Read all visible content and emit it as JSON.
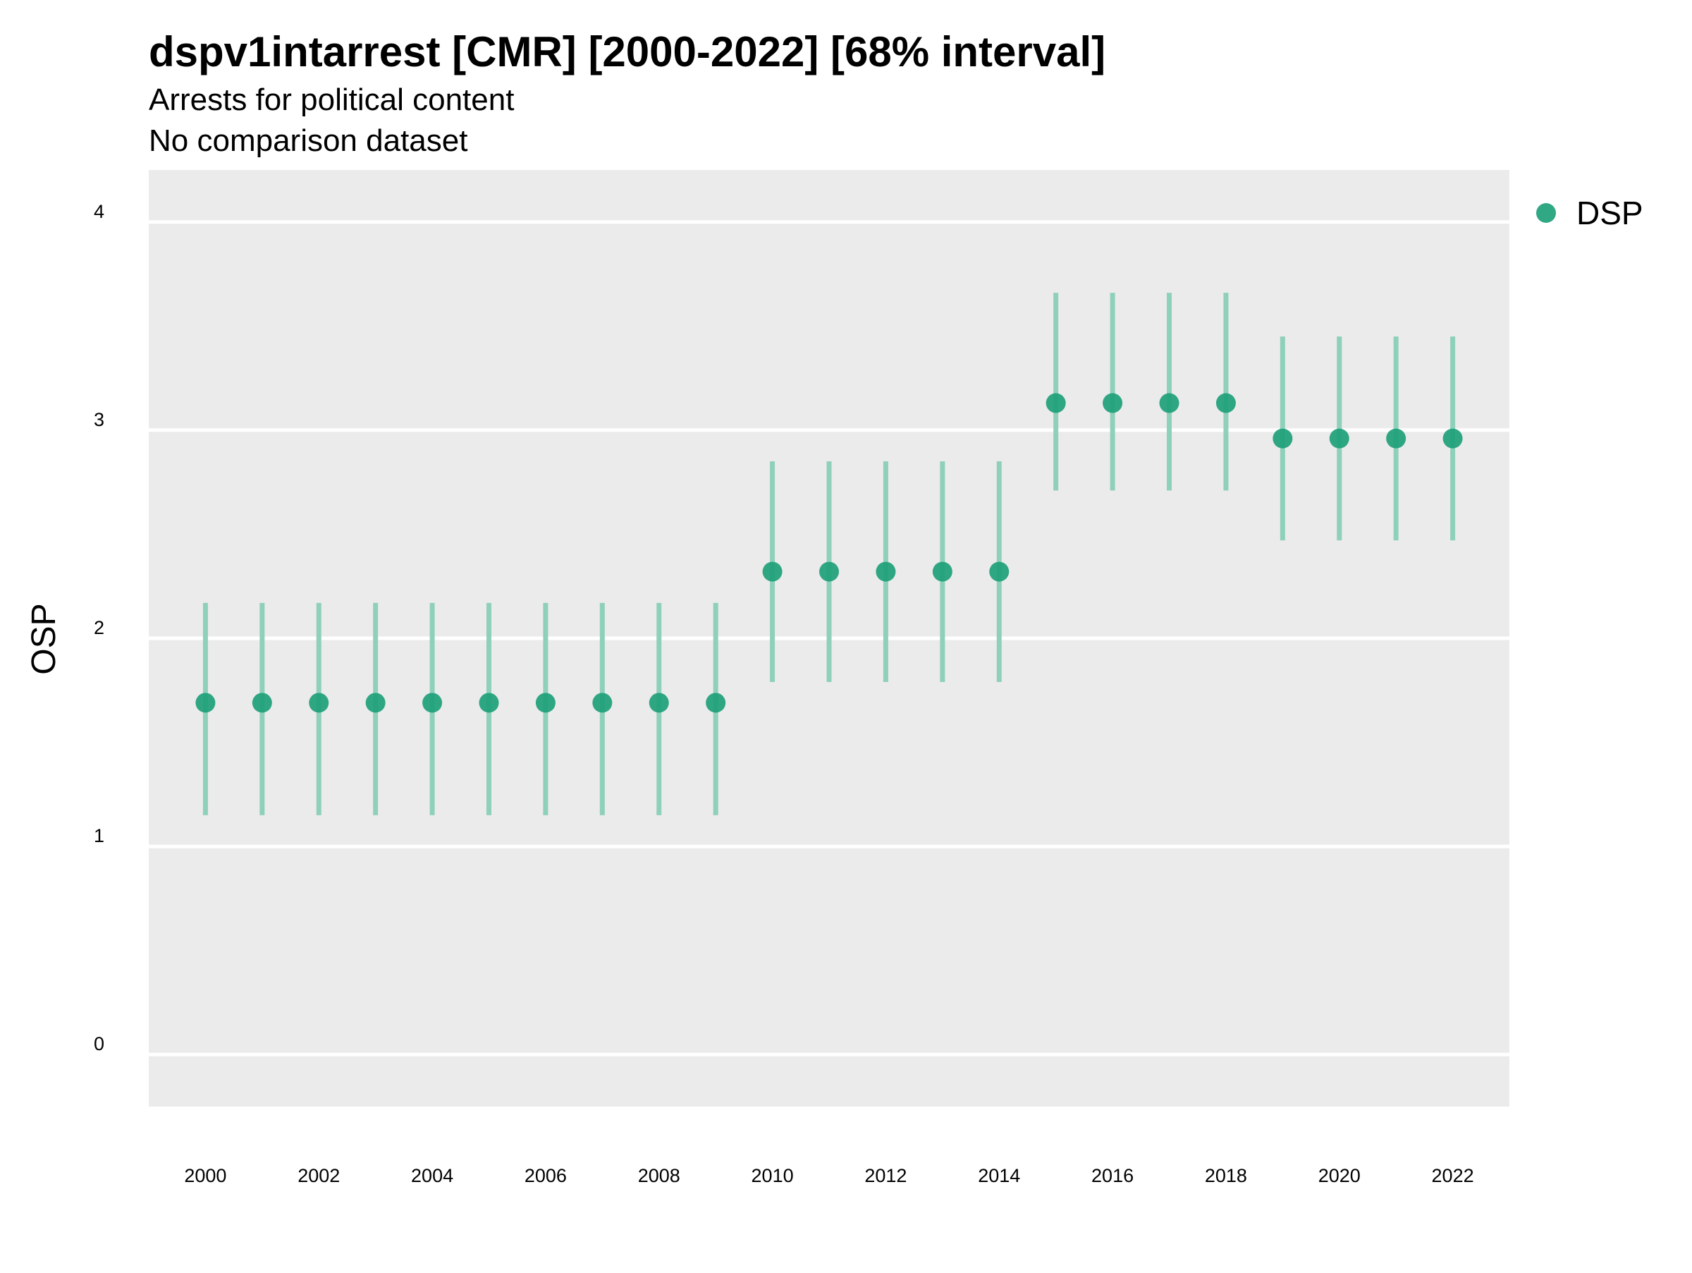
{
  "chart_data": {
    "type": "scatter",
    "title": "dspv1intarrest [CMR] [2000-2022] [68% interval]",
    "subtitle_lines": [
      "Arrests for political content",
      "No comparison dataset"
    ],
    "xlabel": "",
    "ylabel": "OSP",
    "xlim": [
      1999,
      2023
    ],
    "ylim": [
      -0.25,
      4.25
    ],
    "x_ticks": [
      2000,
      2002,
      2004,
      2006,
      2008,
      2010,
      2012,
      2014,
      2016,
      2018,
      2020,
      2022
    ],
    "y_ticks": [
      0,
      1,
      2,
      3,
      4
    ],
    "grid": true,
    "legend_position": "top-right",
    "series": [
      {
        "name": "DSP",
        "color": "#1b9e77",
        "interval_color": "#8fd0ba",
        "x": [
          2000,
          2001,
          2002,
          2003,
          2004,
          2005,
          2006,
          2007,
          2008,
          2009,
          2010,
          2011,
          2012,
          2013,
          2014,
          2015,
          2016,
          2017,
          2018,
          2019,
          2020,
          2021,
          2022
        ],
        "y": [
          1.69,
          1.69,
          1.69,
          1.69,
          1.69,
          1.69,
          1.69,
          1.69,
          1.69,
          1.69,
          2.32,
          2.32,
          2.32,
          2.32,
          2.32,
          3.13,
          3.13,
          3.13,
          3.13,
          2.96,
          2.96,
          2.96,
          2.96
        ],
        "lower": [
          1.15,
          1.15,
          1.15,
          1.15,
          1.15,
          1.15,
          1.15,
          1.15,
          1.15,
          1.15,
          1.79,
          1.79,
          1.79,
          1.79,
          1.79,
          2.71,
          2.71,
          2.71,
          2.71,
          2.47,
          2.47,
          2.47,
          2.47
        ],
        "upper": [
          2.17,
          2.17,
          2.17,
          2.17,
          2.17,
          2.17,
          2.17,
          2.17,
          2.17,
          2.17,
          2.85,
          2.85,
          2.85,
          2.85,
          2.85,
          3.66,
          3.66,
          3.66,
          3.66,
          3.45,
          3.45,
          3.45,
          3.45
        ]
      }
    ]
  },
  "colors": {
    "panel_background": "#ebebeb",
    "grid_line": "#ffffff"
  }
}
